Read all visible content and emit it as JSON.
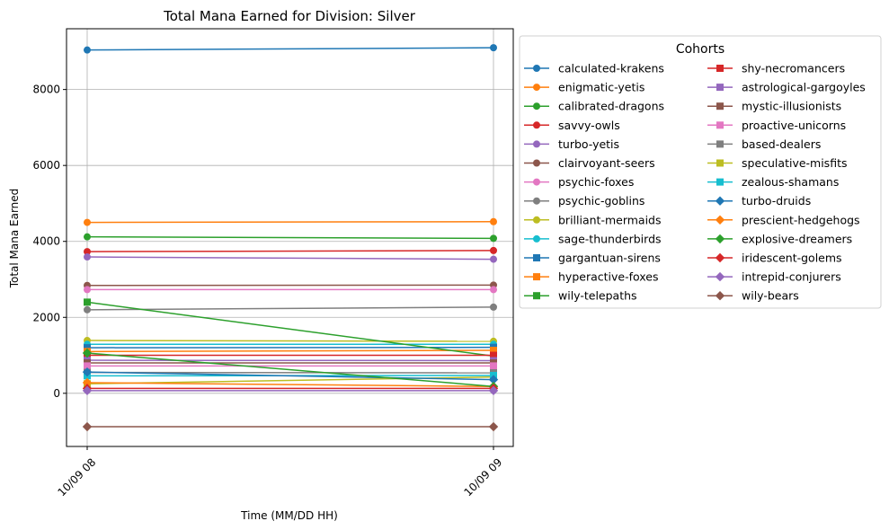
{
  "chart_data": {
    "type": "line",
    "title": "Total Mana Earned for Division: Silver",
    "xlabel": "Time (MM/DD HH)",
    "ylabel": "Total Mana Earned",
    "categories": [
      "10/09 08",
      "10/09 09"
    ],
    "ylim": [
      -1400,
      9600
    ],
    "yticks": [
      0,
      2000,
      4000,
      6000,
      8000
    ],
    "grid": true,
    "legend": {
      "title": "Cohorts",
      "placement": "outside-right",
      "columns": 2
    },
    "series": [
      {
        "name": "calculated-krakens",
        "values": [
          9040,
          9100
        ],
        "color": "#1f77b4",
        "marker": "circle"
      },
      {
        "name": "enigmatic-yetis",
        "values": [
          4500,
          4520
        ],
        "color": "#ff7f0e",
        "marker": "circle"
      },
      {
        "name": "calibrated-dragons",
        "values": [
          4120,
          4080
        ],
        "color": "#2ca02c",
        "marker": "circle"
      },
      {
        "name": "savvy-owls",
        "values": [
          3730,
          3760
        ],
        "color": "#d62728",
        "marker": "circle"
      },
      {
        "name": "turbo-yetis",
        "values": [
          3590,
          3530
        ],
        "color": "#9467bd",
        "marker": "circle"
      },
      {
        "name": "clairvoyant-seers",
        "values": [
          2840,
          2850
        ],
        "color": "#8c564b",
        "marker": "circle"
      },
      {
        "name": "psychic-foxes",
        "values": [
          2730,
          2730
        ],
        "color": "#e377c2",
        "marker": "circle"
      },
      {
        "name": "psychic-goblins",
        "values": [
          2200,
          2270
        ],
        "color": "#7f7f7f",
        "marker": "circle"
      },
      {
        "name": "brilliant-mermaids",
        "values": [
          1390,
          1370
        ],
        "color": "#bcbd22",
        "marker": "circle"
      },
      {
        "name": "sage-thunderbirds",
        "values": [
          1290,
          1290
        ],
        "color": "#17becf",
        "marker": "circle"
      },
      {
        "name": "gargantuan-sirens",
        "values": [
          1200,
          1210
        ],
        "color": "#1f77b4",
        "marker": "square"
      },
      {
        "name": "hyperactive-foxes",
        "values": [
          1100,
          1130
        ],
        "color": "#ff7f0e",
        "marker": "square"
      },
      {
        "name": "wily-telepaths",
        "values": [
          2400,
          980
        ],
        "color": "#2ca02c",
        "marker": "square"
      },
      {
        "name": "shy-necromancers",
        "values": [
          1000,
          1000
        ],
        "color": "#d62728",
        "marker": "square"
      },
      {
        "name": "astrological-gargoyles",
        "values": [
          870,
          860
        ],
        "color": "#9467bd",
        "marker": "square"
      },
      {
        "name": "mystic-illusionists",
        "values": [
          800,
          800
        ],
        "color": "#8c564b",
        "marker": "square"
      },
      {
        "name": "proactive-unicorns",
        "values": [
          720,
          720
        ],
        "color": "#e377c2",
        "marker": "square"
      },
      {
        "name": "based-dealers",
        "values": [
          550,
          540
        ],
        "color": "#7f7f7f",
        "marker": "square"
      },
      {
        "name": "speculative-misfits",
        "values": [
          250,
          430
        ],
        "color": "#bcbd22",
        "marker": "square"
      },
      {
        "name": "zealous-shamans",
        "values": [
          460,
          470
        ],
        "color": "#17becf",
        "marker": "square"
      },
      {
        "name": "turbo-druids",
        "values": [
          560,
          360
        ],
        "color": "#1f77b4",
        "marker": "diamond"
      },
      {
        "name": "prescient-hedgehogs",
        "values": [
          280,
          180
        ],
        "color": "#ff7f0e",
        "marker": "diamond"
      },
      {
        "name": "explosive-dreamers",
        "values": [
          1060,
          180
        ],
        "color": "#2ca02c",
        "marker": "diamond"
      },
      {
        "name": "iridescent-golems",
        "values": [
          130,
          130
        ],
        "color": "#d62728",
        "marker": "diamond"
      },
      {
        "name": "intrepid-conjurers",
        "values": [
          70,
          70
        ],
        "color": "#9467bd",
        "marker": "diamond"
      },
      {
        "name": "wily-bears",
        "values": [
          -880,
          -880
        ],
        "color": "#8c564b",
        "marker": "diamond"
      }
    ]
  }
}
